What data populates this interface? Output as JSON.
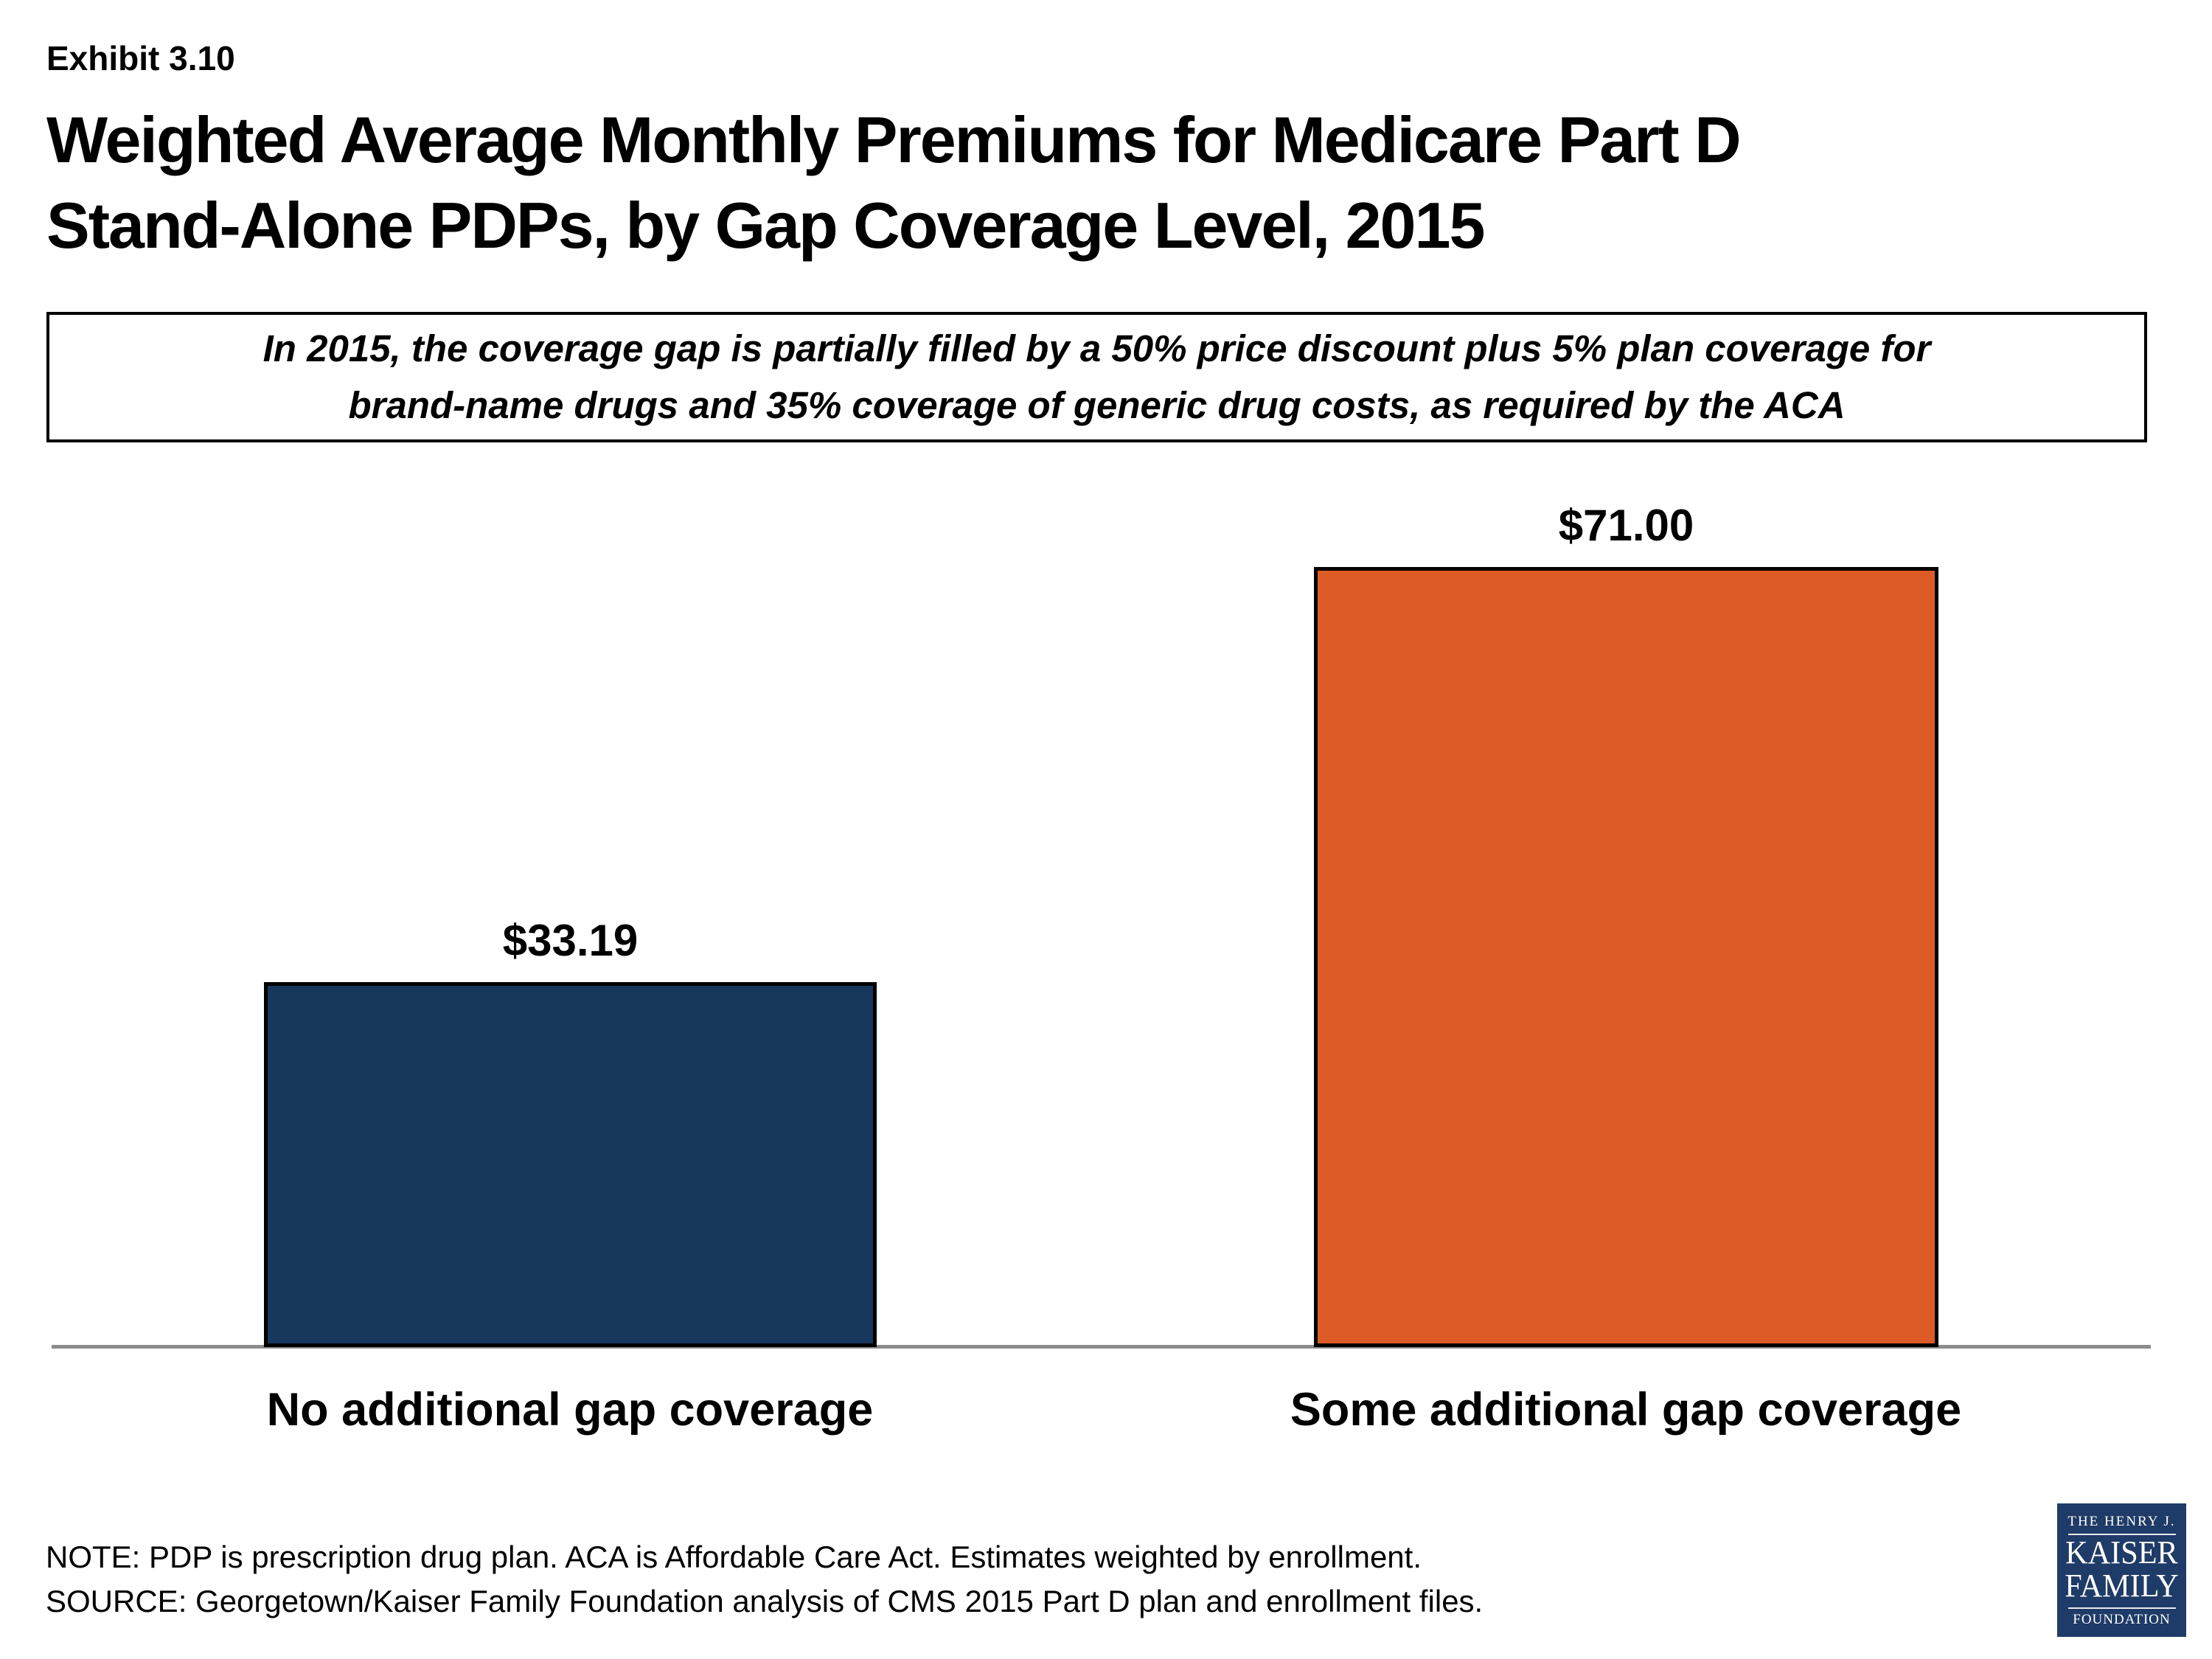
{
  "header": {
    "exhibit_number": "Exhibit 3.10",
    "title_line1": "Weighted Average Monthly Premiums for Medicare Part D",
    "title_line2": "Stand-Alone PDPs, by Gap Coverage Level, 2015"
  },
  "callout": {
    "line1": "In 2015, the coverage gap is partially filled by a 50% price discount plus 5% plan coverage for",
    "line2": "brand-name drugs and 35% coverage of generic drug costs, as required by the ACA"
  },
  "chart_data": {
    "type": "bar",
    "title": "Weighted Average Monthly Premiums for Medicare Part D Stand-Alone PDPs, by Gap Coverage Level, 2015",
    "categories": [
      "No additional gap coverage",
      "Some additional gap coverage"
    ],
    "values": [
      33.19,
      71.0
    ],
    "value_labels": [
      "$33.19",
      "$71.00"
    ],
    "bar_colors": [
      "#17375C",
      "#DD5B27"
    ],
    "xlabel": "",
    "ylabel": "",
    "ylim": [
      0,
      75
    ],
    "grid": "off",
    "legend": "none",
    "baseline_color": "#8C8C8C"
  },
  "footer": {
    "note": "NOTE: PDP is prescription drug plan. ACA is Affordable Care Act. Estimates weighted by enrollment.",
    "source": "SOURCE: Georgetown/Kaiser Family Foundation analysis of CMS 2015 Part D plan and enrollment files."
  },
  "logo": {
    "line1": "THE HENRY J.",
    "line2": "KAISER",
    "line3": "FAMILY",
    "line4": "FOUNDATION",
    "bg_color": "#1F3B67"
  }
}
